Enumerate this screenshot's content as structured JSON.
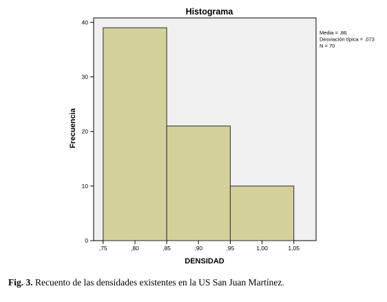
{
  "chart_data": {
    "type": "bar",
    "title": "Histograma",
    "xlabel": "DENSIDAD",
    "ylabel": "Frecuencia",
    "x_ticks": [
      ",75",
      ",80",
      ",85",
      ",90",
      ",95",
      "1,00",
      "1,05"
    ],
    "x_tick_values": [
      0.75,
      0.8,
      0.85,
      0.9,
      0.95,
      1.0,
      1.05
    ],
    "y_ticks": [
      "0",
      "10",
      "20",
      "30",
      "40"
    ],
    "y_tick_values": [
      0,
      10,
      20,
      30,
      40
    ],
    "xlim": [
      0.735,
      1.085
    ],
    "ylim": [
      0,
      40.8
    ],
    "bins": [
      {
        "x0": 0.75,
        "x1": 0.85,
        "value": 39
      },
      {
        "x0": 0.85,
        "x1": 0.95,
        "value": 21
      },
      {
        "x0": 0.95,
        "x1": 1.05,
        "value": 10
      }
    ],
    "stats": [
      "Media = ,86",
      "Desviación típica = ,073",
      "N = 70"
    ],
    "colors": {
      "bar_fill": "#d4d09a",
      "bar_stroke": "#2a2a2a",
      "plot_bg": "#f0f0f0"
    }
  },
  "caption": {
    "label": "Fig. 3.",
    "text": " Recuento de las densidades existentes en la US San Juan Martínez."
  }
}
